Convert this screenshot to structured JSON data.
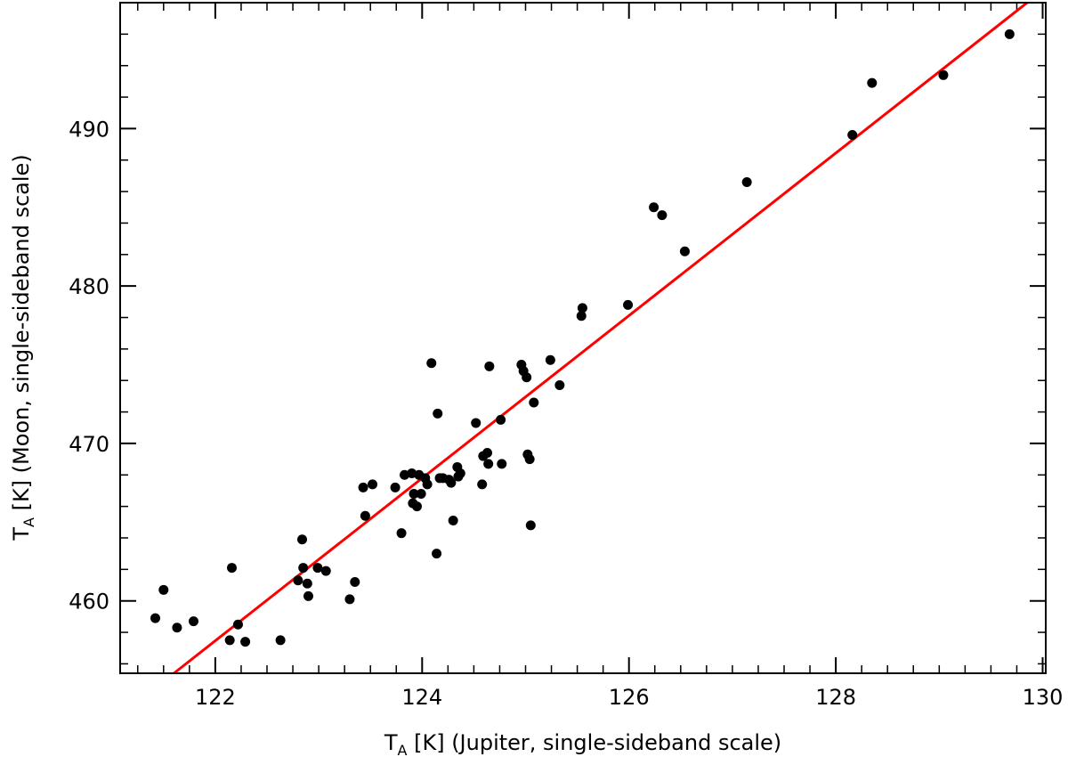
{
  "chart_data": {
    "type": "scatter",
    "title": "",
    "xlabel": {
      "main": "T",
      "sub": "A",
      "rest": " [K] (Jupiter, single-sideband scale)"
    },
    "ylabel": {
      "main": "T",
      "sub": "A",
      "rest": " [K] (Moon, single-sideband scale)"
    },
    "xlim": [
      121.08,
      130.03
    ],
    "ylim": [
      455.4,
      498.0
    ],
    "xticks": [
      122,
      124,
      126,
      128,
      130
    ],
    "yticks": [
      460,
      470,
      480,
      490
    ],
    "x_minor_step": 0.25,
    "y_minor_step": 2,
    "grid": false,
    "legend": "none",
    "colors": {
      "points": "#000000",
      "fit_line": "#ff0000",
      "axes": "#000000"
    },
    "fit_line": {
      "x": [
        121.6,
        129.85
      ],
      "y": [
        455.4,
        498.0
      ]
    },
    "points": [
      {
        "x": 121.42,
        "y": 458.9
      },
      {
        "x": 121.5,
        "y": 460.7
      },
      {
        "x": 121.63,
        "y": 458.3
      },
      {
        "x": 121.79,
        "y": 458.7
      },
      {
        "x": 122.14,
        "y": 457.5
      },
      {
        "x": 122.16,
        "y": 462.1
      },
      {
        "x": 122.22,
        "y": 458.5
      },
      {
        "x": 122.29,
        "y": 457.4
      },
      {
        "x": 122.63,
        "y": 457.5
      },
      {
        "x": 122.8,
        "y": 461.3
      },
      {
        "x": 122.84,
        "y": 463.9
      },
      {
        "x": 122.85,
        "y": 462.1
      },
      {
        "x": 122.89,
        "y": 461.1
      },
      {
        "x": 122.9,
        "y": 460.3
      },
      {
        "x": 122.99,
        "y": 462.1
      },
      {
        "x": 123.07,
        "y": 461.9
      },
      {
        "x": 123.3,
        "y": 460.1
      },
      {
        "x": 123.35,
        "y": 461.2
      },
      {
        "x": 123.43,
        "y": 467.2
      },
      {
        "x": 123.45,
        "y": 465.4
      },
      {
        "x": 123.52,
        "y": 467.4
      },
      {
        "x": 123.74,
        "y": 467.2
      },
      {
        "x": 123.8,
        "y": 464.3
      },
      {
        "x": 123.83,
        "y": 468.0
      },
      {
        "x": 123.9,
        "y": 468.1
      },
      {
        "x": 123.91,
        "y": 466.2
      },
      {
        "x": 123.92,
        "y": 466.8
      },
      {
        "x": 123.95,
        "y": 466.0
      },
      {
        "x": 123.97,
        "y": 468.0
      },
      {
        "x": 123.99,
        "y": 466.8
      },
      {
        "x": 124.03,
        "y": 467.8
      },
      {
        "x": 124.05,
        "y": 467.4
      },
      {
        "x": 124.09,
        "y": 475.1
      },
      {
        "x": 124.14,
        "y": 463.0
      },
      {
        "x": 124.15,
        "y": 471.9
      },
      {
        "x": 124.17,
        "y": 467.8
      },
      {
        "x": 124.2,
        "y": 467.8
      },
      {
        "x": 124.26,
        "y": 467.7
      },
      {
        "x": 124.28,
        "y": 467.5
      },
      {
        "x": 124.3,
        "y": 465.1
      },
      {
        "x": 124.34,
        "y": 468.5
      },
      {
        "x": 124.35,
        "y": 467.9
      },
      {
        "x": 124.37,
        "y": 468.1
      },
      {
        "x": 124.52,
        "y": 471.3
      },
      {
        "x": 124.58,
        "y": 467.4
      },
      {
        "x": 124.59,
        "y": 469.2
      },
      {
        "x": 124.63,
        "y": 469.4
      },
      {
        "x": 124.64,
        "y": 468.7
      },
      {
        "x": 124.65,
        "y": 474.9
      },
      {
        "x": 124.76,
        "y": 471.5
      },
      {
        "x": 124.77,
        "y": 468.7
      },
      {
        "x": 124.96,
        "y": 475.0
      },
      {
        "x": 124.98,
        "y": 474.6
      },
      {
        "x": 125.01,
        "y": 474.2
      },
      {
        "x": 125.02,
        "y": 469.3
      },
      {
        "x": 125.04,
        "y": 469.0
      },
      {
        "x": 125.05,
        "y": 464.8
      },
      {
        "x": 125.08,
        "y": 472.6
      },
      {
        "x": 125.24,
        "y": 475.3
      },
      {
        "x": 125.33,
        "y": 473.7
      },
      {
        "x": 125.54,
        "y": 478.1
      },
      {
        "x": 125.55,
        "y": 478.6
      },
      {
        "x": 125.99,
        "y": 478.8
      },
      {
        "x": 126.24,
        "y": 485.0
      },
      {
        "x": 126.32,
        "y": 484.5
      },
      {
        "x": 126.54,
        "y": 482.2
      },
      {
        "x": 127.14,
        "y": 486.6
      },
      {
        "x": 128.16,
        "y": 489.6
      },
      {
        "x": 128.35,
        "y": 492.9
      },
      {
        "x": 129.04,
        "y": 493.4
      },
      {
        "x": 129.68,
        "y": 496.0
      }
    ]
  }
}
